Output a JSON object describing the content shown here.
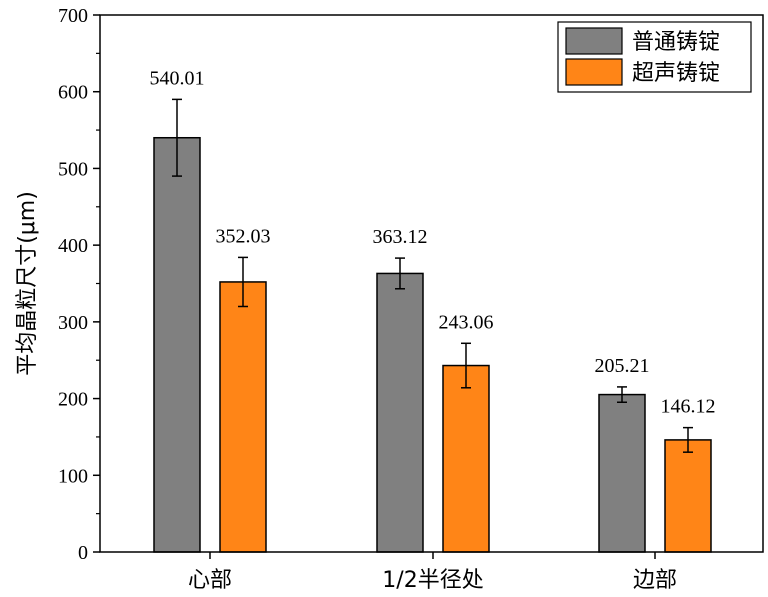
{
  "chart_data": {
    "type": "bar",
    "title": "",
    "xlabel": "",
    "ylabel": "平均晶粒尺寸(μm)",
    "ylim": [
      0,
      700
    ],
    "yticks": [
      0,
      100,
      200,
      300,
      400,
      500,
      600,
      700
    ],
    "grid": false,
    "legend_position": "top-right",
    "categories": [
      "心部",
      "1/2半径处",
      "边部"
    ],
    "series": [
      {
        "name": "普通铸锭",
        "color": "#808080",
        "values": [
          540.01,
          363.12,
          205.21
        ],
        "value_labels": [
          "540.01",
          "363.12",
          "205.21"
        ],
        "errors": [
          50,
          20,
          10
        ]
      },
      {
        "name": "超声铸锭",
        "color": "#FF8517",
        "values": [
          352.03,
          243.06,
          146.12
        ],
        "value_labels": [
          "352.03",
          "243.06",
          "146.12"
        ],
        "errors": [
          32,
          29,
          16
        ]
      }
    ]
  }
}
